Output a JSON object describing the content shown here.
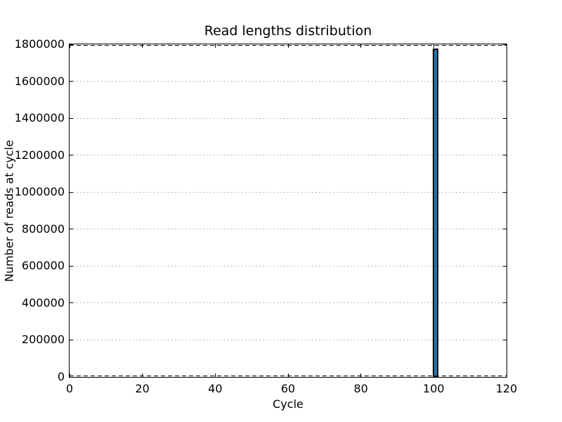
{
  "chart": {
    "title": "Read lengths distribution",
    "xlabel": "Cycle",
    "ylabel": "Number of reads at cycle"
  },
  "chart_data": {
    "type": "bar",
    "title": "Read lengths distribution",
    "xlabel": "Cycle",
    "ylabel": "Number of reads at cycle",
    "xlim": [
      0,
      120
    ],
    "ylim": [
      0,
      1800000
    ],
    "xticks": [
      0,
      20,
      40,
      60,
      80,
      100,
      120
    ],
    "yticks": [
      0,
      200000,
      400000,
      600000,
      800000,
      1000000,
      1200000,
      1400000,
      1600000,
      1800000
    ],
    "grid": {
      "axis": "y",
      "style": "dotted",
      "color": "#a8a8a8"
    },
    "boundary_lines": {
      "values": [
        0,
        1800000
      ],
      "style": "dashed",
      "color": "#000000"
    },
    "bars": [
      {
        "x": 100,
        "width": 1,
        "value": 1777000
      }
    ],
    "bar_color": "#1f77b4",
    "bar_edge_color": "#000000",
    "legend": "none",
    "background_color": "#ffffff",
    "spine_color": "#000000"
  }
}
